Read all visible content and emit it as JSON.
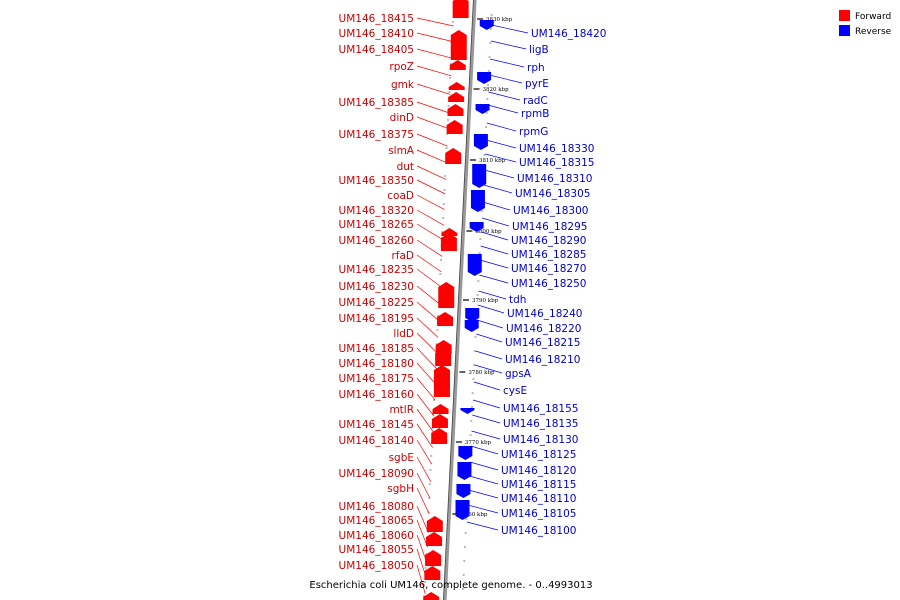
{
  "caption": "Escherichia coli UM146, complete genome. - 0..4993013",
  "legend": [
    {
      "label": "Forward",
      "color": "#ff0000"
    },
    {
      "label": "Reverse",
      "color": "#0000ff"
    }
  ],
  "colors": {
    "forward": "#ff0000",
    "reverse": "#0000ff",
    "forward_text": "#cc0000",
    "reverse_text": "#0000cc",
    "backbone": "#888888"
  },
  "ruler_ticks": [
    "3830 kbp",
    "3820 kbp",
    "3810 kbp",
    "3800 kbp",
    "3790 kbp",
    "3780 kbp",
    "3770 kbp",
    "3760 kbp"
  ],
  "forward_genes": [
    "UM146_18415",
    "UM146_18410",
    "UM146_18405",
    "rpoZ",
    "gmk",
    "UM146_18385",
    "dinD",
    "UM146_18375",
    "slmA",
    "dut",
    "UM146_18350",
    "coaD",
    "UM146_18320",
    "UM146_18265",
    "UM146_18260",
    "rfaD",
    "UM146_18235",
    "UM146_18230",
    "UM146_18225",
    "UM146_18195",
    "lldD",
    "UM146_18185",
    "UM146_18180",
    "UM146_18175",
    "UM146_18160",
    "mtlR",
    "UM146_18145",
    "UM146_18140",
    "sgbE",
    "UM146_18090",
    "sgbH",
    "UM146_18080",
    "UM146_18065",
    "UM146_18060",
    "UM146_18055",
    "UM146_18050"
  ],
  "reverse_genes": [
    "UM146_18420",
    "ligB",
    "rph",
    "pyrE",
    "radC",
    "rpmB",
    "rpmG",
    "UM146_18330",
    "UM146_18315",
    "UM146_18310",
    "UM146_18305",
    "UM146_18300",
    "UM146_18295",
    "UM146_18290",
    "UM146_18285",
    "UM146_18270",
    "UM146_18250",
    "tdh",
    "UM146_18240",
    "UM146_18220",
    "UM146_18215",
    "UM146_18210",
    "gpsA",
    "cysE",
    "UM146_18155",
    "UM146_18135",
    "UM146_18130",
    "UM146_18125",
    "UM146_18120",
    "UM146_18115",
    "UM146_18110",
    "UM146_18105",
    "UM146_18100"
  ]
}
